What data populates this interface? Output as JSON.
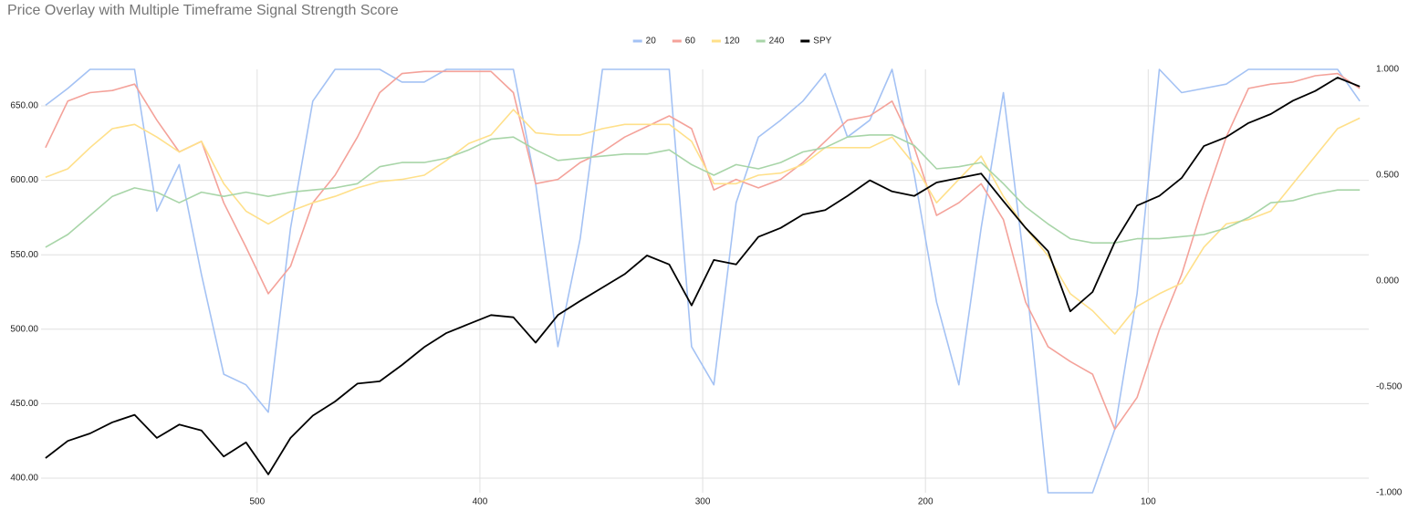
{
  "chart_data": {
    "type": "line",
    "title": "Price Overlay with Multiple Timeframe Signal Strength Score",
    "x": [
      595,
      585,
      575,
      565,
      555,
      545,
      535,
      525,
      515,
      505,
      495,
      485,
      475,
      465,
      455,
      445,
      435,
      425,
      415,
      405,
      395,
      385,
      375,
      365,
      355,
      345,
      335,
      325,
      315,
      305,
      295,
      285,
      275,
      265,
      255,
      245,
      235,
      225,
      215,
      205,
      195,
      185,
      175,
      165,
      155,
      145,
      135,
      125,
      115,
      105,
      95,
      85,
      75,
      65,
      55,
      45,
      35,
      25,
      15,
      5
    ],
    "xlim": [
      597,
      1
    ],
    "xticks": [
      500,
      400,
      300,
      200,
      100
    ],
    "ylim": [
      390.2,
      674.5
    ],
    "yticks": [
      {
        "value": 400,
        "label": "400.00"
      },
      {
        "value": 450,
        "label": "450.00"
      },
      {
        "value": 500,
        "label": "500.00"
      },
      {
        "value": 550,
        "label": "550.00"
      },
      {
        "value": 600,
        "label": "600.00"
      },
      {
        "value": 650,
        "label": "650.00"
      }
    ],
    "y2lim": [
      -1,
      1
    ],
    "y2ticks": [
      {
        "value": -1,
        "label": "-1.000"
      },
      {
        "value": -0.5,
        "label": "-0.500"
      },
      {
        "value": 0,
        "label": "0.000"
      },
      {
        "value": 0.5,
        "label": "0.500"
      },
      {
        "value": 1,
        "label": "1.000"
      }
    ],
    "grid": true,
    "legend": "top",
    "series": [
      {
        "name": "20",
        "color": "#a4c2f4",
        "axis": "y2",
        "values": [
          0.83,
          0.91,
          1,
          1,
          1,
          0.33,
          0.55,
          0.03,
          -0.44,
          -0.49,
          -0.62,
          0.25,
          0.85,
          1,
          1,
          1,
          0.94,
          0.94,
          1,
          1,
          1,
          1,
          0.46,
          -0.31,
          0.2,
          1,
          1,
          1,
          1,
          -0.31,
          -0.49,
          0.37,
          0.68,
          0.76,
          0.85,
          0.98,
          0.68,
          0.76,
          1,
          0.5,
          -0.1,
          -0.49,
          0.25,
          0.89,
          0.03,
          -1,
          -1,
          -1,
          -0.7,
          -0.06,
          1,
          0.89,
          0.91,
          0.93,
          1,
          1,
          1,
          1,
          1,
          0.85
        ]
      },
      {
        "name": "60",
        "color": "#f4a29a",
        "axis": "y2",
        "values": [
          0.63,
          0.85,
          0.89,
          0.9,
          0.93,
          0.76,
          0.61,
          0.66,
          0.37,
          0.16,
          -0.06,
          0.07,
          0.37,
          0.5,
          0.68,
          0.89,
          0.98,
          0.99,
          0.99,
          0.99,
          0.99,
          0.89,
          0.46,
          0.48,
          0.56,
          0.61,
          0.68,
          0.73,
          0.78,
          0.72,
          0.43,
          0.48,
          0.44,
          0.48,
          0.56,
          0.66,
          0.76,
          0.78,
          0.85,
          0.63,
          0.31,
          0.37,
          0.46,
          0.29,
          -0.1,
          -0.31,
          -0.38,
          -0.44,
          -0.7,
          -0.55,
          -0.23,
          0.03,
          0.37,
          0.68,
          0.91,
          0.93,
          0.94,
          0.97,
          0.98,
          0.91
        ]
      },
      {
        "name": "120",
        "color": "#ffe08a",
        "axis": "y2",
        "values": [
          0.49,
          0.53,
          0.63,
          0.72,
          0.74,
          0.68,
          0.61,
          0.66,
          0.46,
          0.33,
          0.27,
          0.33,
          0.37,
          0.4,
          0.44,
          0.47,
          0.48,
          0.5,
          0.57,
          0.65,
          0.69,
          0.81,
          0.7,
          0.69,
          0.69,
          0.72,
          0.74,
          0.74,
          0.74,
          0.66,
          0.46,
          0.46,
          0.5,
          0.51,
          0.55,
          0.63,
          0.63,
          0.63,
          0.68,
          0.55,
          0.37,
          0.48,
          0.59,
          0.4,
          0.25,
          0.12,
          -0.06,
          -0.14,
          -0.25,
          -0.12,
          -0.06,
          -0.01,
          0.16,
          0.27,
          0.29,
          0.33,
          0.46,
          0.59,
          0.72,
          0.77
        ]
      },
      {
        "name": "240",
        "color": "#a8d5a8",
        "axis": "y2",
        "values": [
          0.16,
          0.22,
          0.31,
          0.4,
          0.44,
          0.42,
          0.37,
          0.42,
          0.4,
          0.42,
          0.4,
          0.42,
          0.43,
          0.44,
          0.46,
          0.54,
          0.56,
          0.56,
          0.58,
          0.62,
          0.67,
          0.68,
          0.62,
          0.57,
          0.58,
          0.59,
          0.6,
          0.6,
          0.62,
          0.55,
          0.5,
          0.55,
          0.53,
          0.56,
          0.61,
          0.63,
          0.68,
          0.69,
          0.69,
          0.64,
          0.53,
          0.54,
          0.56,
          0.46,
          0.35,
          0.27,
          0.2,
          0.18,
          0.18,
          0.2,
          0.2,
          0.21,
          0.22,
          0.25,
          0.3,
          0.37,
          0.38,
          0.41,
          0.43,
          0.43
        ]
      },
      {
        "name": "SPY",
        "color": "#000000",
        "values": [
          413.5,
          425,
          430,
          437.5,
          442.5,
          427,
          436,
          432,
          414.5,
          424,
          402.5,
          427,
          442,
          451.5,
          463.5,
          465,
          476,
          488,
          497.5,
          503.5,
          509.5,
          508,
          491,
          509.5,
          519,
          528,
          537,
          549.5,
          543.5,
          516,
          546.5,
          543.5,
          562,
          568,
          577,
          580,
          589.5,
          600,
          592.5,
          589.5,
          598.5,
          601.5,
          604.5,
          586,
          568,
          552.5,
          512,
          525,
          558.5,
          583,
          589.5,
          601.5,
          623,
          629,
          638.5,
          644.5,
          653.5,
          660,
          669,
          663
        ]
      }
    ]
  }
}
